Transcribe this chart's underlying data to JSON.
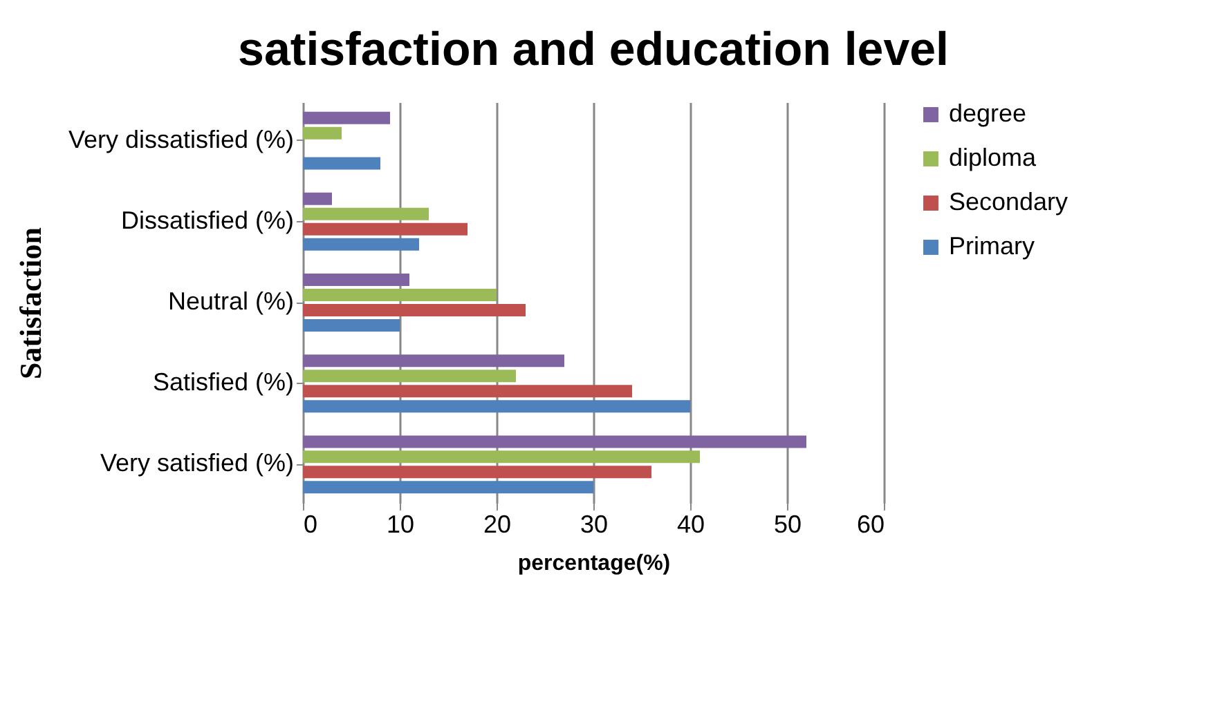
{
  "chart_data": {
    "type": "bar",
    "orientation": "horizontal",
    "title": "satisfaction and education level",
    "xlabel": "percentage(%)",
    "ylabel": "Satisfaction",
    "categories": [
      "Very dissatisfied (%)",
      "Dissatisfied (%)",
      "Neutral (%)",
      "Satisfied (%)",
      "Very satisfied (%)"
    ],
    "series": [
      {
        "name": "Primary",
        "color": "#4f81bd",
        "values": [
          8,
          12,
          10,
          40,
          30
        ]
      },
      {
        "name": "Secondary",
        "color": "#c0504d",
        "values": [
          0,
          17,
          23,
          34,
          36
        ]
      },
      {
        "name": "diploma",
        "color": "#9bbb59",
        "values": [
          4,
          13,
          20,
          22,
          41
        ]
      },
      {
        "name": "degree",
        "color": "#8064a2",
        "values": [
          9,
          3,
          11,
          27,
          52
        ]
      }
    ],
    "xlim": [
      0,
      60
    ],
    "xticks": [
      0,
      10,
      20,
      30,
      40,
      50,
      60
    ],
    "grid": "x",
    "legend": "right"
  }
}
